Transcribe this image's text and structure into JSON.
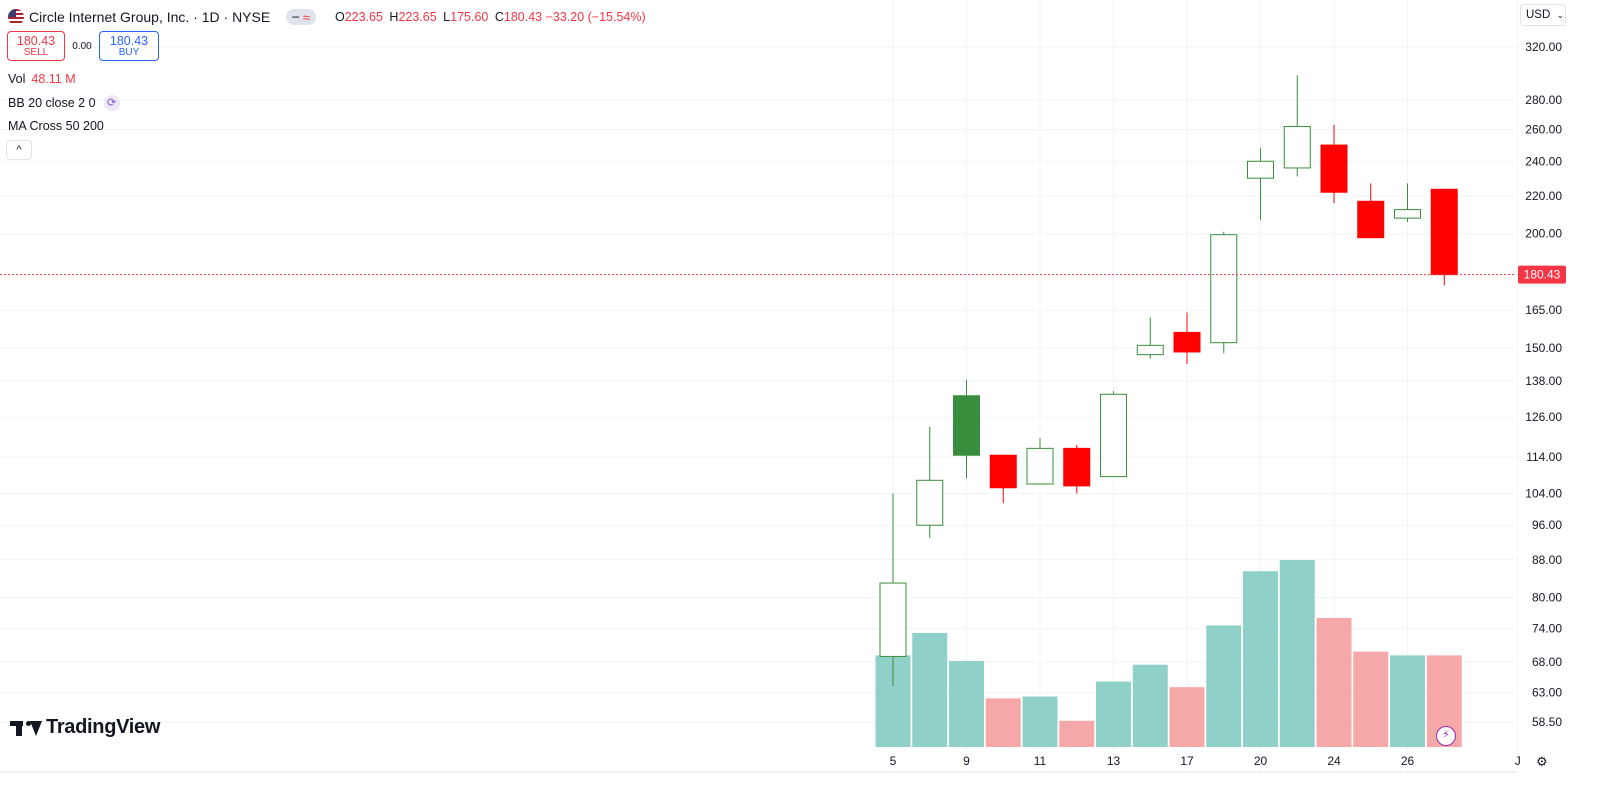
{
  "header": {
    "title": "Circle Internet Group, Inc. · 1D · NYSE",
    "ohlc": [
      {
        "key": "O",
        "value": "223.65"
      },
      {
        "key": "H",
        "value": "223.65"
      },
      {
        "key": "L",
        "value": "175.60"
      },
      {
        "key": "C",
        "value": "180.43 −33.20 (−15.54%)"
      }
    ]
  },
  "trade": {
    "sell_price": "180.43",
    "sell_label": "SELL",
    "spread": "0.00",
    "buy_price": "180.43",
    "buy_label": "BUY"
  },
  "indicators": {
    "vol_label": "Vol",
    "vol_value": "48.11 M",
    "bb_label": "BB 20 close 2 0",
    "ma_label": "MA Cross 50 200"
  },
  "currency": "USD",
  "brand": "TradingView",
  "colors": {
    "up": "#388e3c",
    "down": "#ff0000",
    "vol_up": "#8fd1c9",
    "vol_down": "#f6a7a7",
    "last_price": "#f23645"
  },
  "chart_data": {
    "type": "candlestick",
    "x_tick_labels": [
      "5",
      "9",
      "11",
      "13",
      "17",
      "20",
      "24",
      "26",
      "J"
    ],
    "y_tick_labels": [
      "320.00",
      "280.00",
      "260.00",
      "240.00",
      "220.00",
      "200.00",
      "165.00",
      "150.00",
      "138.00",
      "126.00",
      "114.00",
      "104.00",
      "96.00",
      "88.00",
      "80.00",
      "74.00",
      "68.00",
      "63.00",
      "58.50"
    ],
    "y_scale": "log",
    "last_price": "180.43",
    "candles": [
      {
        "open": 69,
        "high": 104,
        "low": 64,
        "close": 83,
        "hollow": true
      },
      {
        "open": 96,
        "high": 123,
        "low": 93,
        "close": 107.5,
        "hollow": true
      },
      {
        "open": 114.5,
        "high": 138.5,
        "low": 108,
        "close": 133,
        "hollow": false
      },
      {
        "open": 114.5,
        "high": 114.5,
        "low": 101.5,
        "close": 105.5,
        "hollow": false
      },
      {
        "open": 106.5,
        "high": 119.5,
        "low": 106.5,
        "close": 116.5,
        "hollow": true
      },
      {
        "open": 116.5,
        "high": 117.5,
        "low": 104,
        "close": 106,
        "hollow": false
      },
      {
        "open": 108.5,
        "high": 134.5,
        "low": 108.5,
        "close": 133.5,
        "hollow": true
      },
      {
        "open": 147.5,
        "high": 162,
        "low": 146,
        "close": 151,
        "hollow": true
      },
      {
        "open": 156,
        "high": 164,
        "low": 144,
        "close": 148.5,
        "hollow": false
      },
      {
        "open": 152,
        "high": 201,
        "low": 148,
        "close": 199.5,
        "hollow": true
      },
      {
        "open": 230,
        "high": 248,
        "low": 207,
        "close": 240,
        "hollow": true
      },
      {
        "open": 236,
        "high": 298,
        "low": 231,
        "close": 262,
        "hollow": true
      },
      {
        "open": 250,
        "high": 263,
        "low": 216,
        "close": 222,
        "hollow": false
      },
      {
        "open": 217,
        "high": 227,
        "low": 198,
        "close": 198,
        "hollow": false
      },
      {
        "open": 208,
        "high": 227,
        "low": 206,
        "close": 212.5,
        "hollow": true
      },
      {
        "open": 223.65,
        "high": 223.65,
        "low": 175.6,
        "close": 180.43,
        "hollow": false
      }
    ],
    "volume": [
      {
        "value": 0.49,
        "up": true
      },
      {
        "value": 0.61,
        "up": true
      },
      {
        "value": 0.46,
        "up": true
      },
      {
        "value": 0.26,
        "up": false
      },
      {
        "value": 0.27,
        "up": true
      },
      {
        "value": 0.14,
        "up": false
      },
      {
        "value": 0.35,
        "up": true
      },
      {
        "value": 0.44,
        "up": true
      },
      {
        "value": 0.32,
        "up": false
      },
      {
        "value": 0.65,
        "up": true
      },
      {
        "value": 0.94,
        "up": true
      },
      {
        "value": 1.0,
        "up": true
      },
      {
        "value": 0.69,
        "up": false
      },
      {
        "value": 0.51,
        "up": false
      },
      {
        "value": 0.49,
        "up": true
      },
      {
        "value": 0.49,
        "up": false
      }
    ]
  }
}
